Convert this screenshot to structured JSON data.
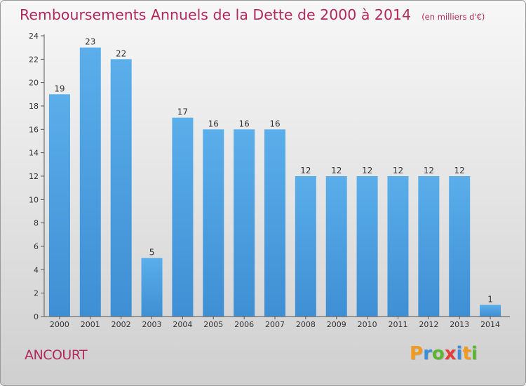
{
  "chart_data": {
    "type": "bar",
    "title": "Remboursements Annuels de la Dette de 2000 à 2014",
    "unit_note": "(en milliers d'€)",
    "categories": [
      "2000",
      "2001",
      "2002",
      "2003",
      "2004",
      "2005",
      "2006",
      "2007",
      "2008",
      "2009",
      "2010",
      "2011",
      "2012",
      "2013",
      "2014"
    ],
    "values": [
      19,
      23,
      22,
      5,
      17,
      16,
      16,
      16,
      12,
      12,
      12,
      12,
      12,
      12,
      1
    ],
    "data_labels": [
      "19",
      "23",
      "22",
      "5",
      "17",
      "16",
      "16",
      "16",
      "12",
      "12",
      "12",
      "12",
      "12",
      "12",
      "1"
    ],
    "y_ticks": [
      0,
      2,
      4,
      6,
      8,
      10,
      12,
      14,
      16,
      18,
      20,
      22,
      24
    ],
    "ylim": [
      0,
      24
    ],
    "xlabel": "",
    "ylabel": "",
    "grid": false,
    "bar_color": "#3e8fd4",
    "bar_color_light": "#5aaeea"
  },
  "footer": {
    "city": "ANCOURT",
    "brand": [
      "P",
      "r",
      "o",
      "x",
      "i",
      "t",
      "i"
    ],
    "brand_colors": [
      "#f39a1c",
      "#3c8ed8",
      "#5bb532",
      "#e23c3c",
      "#3c8ed8",
      "#f39a1c",
      "#5bb532"
    ]
  },
  "colors": {
    "accent": "#b22a5b",
    "axis": "#333333",
    "text": "#333333"
  }
}
